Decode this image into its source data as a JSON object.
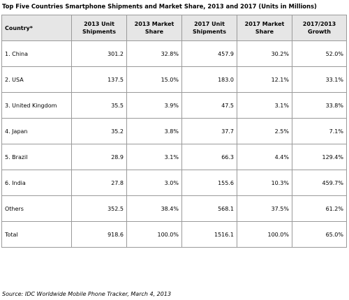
{
  "title": "Top Five Countries Smartphone Shipments and Market Share, 2013 and 2017 (Units in Millions)",
  "table": {
    "headers": [
      {
        "line1": "Country*",
        "line2": ""
      },
      {
        "line1": "2013 Unit",
        "line2": "Shipments"
      },
      {
        "line1": "2013 Market",
        "line2": "Share"
      },
      {
        "line1": "2017 Unit",
        "line2": "Shipments"
      },
      {
        "line1": "2017 Market",
        "line2": "Share"
      },
      {
        "line1": "2017/2013",
        "line2": "Growth"
      }
    ],
    "rows": [
      [
        "1. China",
        "301.2",
        "32.8%",
        "457.9",
        "30.2%",
        "52.0%"
      ],
      [
        "2. USA",
        "137.5",
        "15.0%",
        "183.0",
        "12.1%",
        "33.1%"
      ],
      [
        "3. United Kingdom",
        "35.5",
        "3.9%",
        "47.5",
        "3.1%",
        "33.8%"
      ],
      [
        "4. Japan",
        "35.2",
        "3.8%",
        "37.7",
        "2.5%",
        "7.1%"
      ],
      [
        "5. Brazil",
        "28.9",
        "3.1%",
        "66.3",
        "4.4%",
        "129.4%"
      ],
      [
        "6. India",
        "27.8",
        "3.0%",
        "155.6",
        "10.3%",
        "459.7%"
      ],
      [
        "Others",
        "352.5",
        "38.4%",
        "568.1",
        "37.5%",
        "61.2%"
      ],
      [
        "Total",
        "918.6",
        "100.0%",
        "1516.1",
        "100.0%",
        "65.0%"
      ]
    ]
  },
  "source": "Source: IDC Worldwide Mobile Phone Tracker, March 4, 2013",
  "colors": {
    "header_background": "#e6e6e6",
    "border": "#9a9a9a",
    "text": "#000000"
  }
}
